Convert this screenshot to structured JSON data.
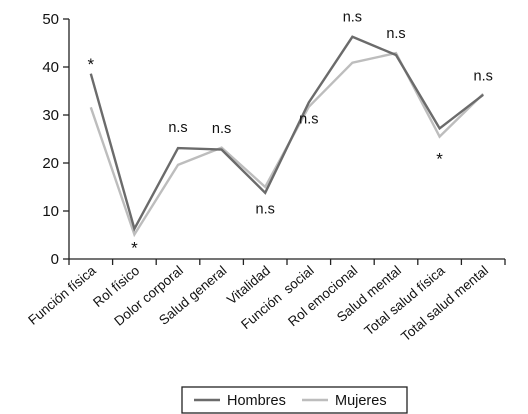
{
  "chart_data": {
    "type": "line",
    "categories": [
      "Función física",
      "Rol físico",
      "Dolor corporal",
      "Salud general",
      "Vitalidad",
      "Función  social",
      "Rol emocional",
      "Salud mental",
      "Total salud física",
      "Total salud mental"
    ],
    "series": [
      {
        "name": "Hombres",
        "color": "#6b6b6b",
        "values": [
          38.6,
          6.3,
          23.1,
          22.8,
          13.8,
          32.6,
          46.3,
          42.5,
          27.2,
          34.2
        ]
      },
      {
        "name": "Mujeres",
        "color": "#bdbdbd",
        "values": [
          31.6,
          5.1,
          19.6,
          23.2,
          15.0,
          31.7,
          40.9,
          42.9,
          25.5,
          34.4
        ]
      }
    ],
    "ylim": [
      0,
      50
    ],
    "yticks": [
      0,
      10,
      20,
      30,
      40,
      50
    ],
    "annotations": [
      {
        "text": "*",
        "category": 0,
        "y": 41.2
      },
      {
        "text": "*",
        "category": 1,
        "y": 3.0
      },
      {
        "text": "n.s",
        "category": 2,
        "y": 26.5
      },
      {
        "text": "n.s",
        "category": 3,
        "y": 26.3
      },
      {
        "text": "n.s",
        "category": 4,
        "y": 9.5
      },
      {
        "text": "n.s",
        "category": 5,
        "y": 28.2
      },
      {
        "text": "n.s",
        "category": 6,
        "y": 49.5
      },
      {
        "text": "n.s",
        "category": 7,
        "y": 46.0
      },
      {
        "text": "*",
        "category": 8,
        "y": 21.6
      },
      {
        "text": "n.s",
        "category": 9,
        "y": 37.2
      }
    ],
    "grid": false,
    "legend_position": "bottom-center"
  }
}
